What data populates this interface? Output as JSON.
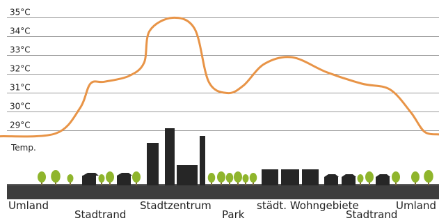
{
  "chart_data": {
    "type": "line",
    "title": "",
    "xlabel": "",
    "ylabel": "Temp.",
    "y_unit": "°C",
    "ylim": [
      28.7,
      35
    ],
    "y_ticks": [
      "35°C",
      "34°C",
      "33°C",
      "32°C",
      "31°C",
      "30°C",
      "29°C"
    ],
    "grid": true,
    "zones": [
      {
        "label": "Umland",
        "row": "upper"
      },
      {
        "label": "Stadtrand",
        "row": "lower"
      },
      {
        "label": "Stadtzentrum",
        "row": "upper"
      },
      {
        "label": "Park",
        "row": "lower"
      },
      {
        "label": "städt. Wohngebiete",
        "row": "upper"
      },
      {
        "label": "Stadtrand",
        "row": "lower"
      },
      {
        "label": "Umland",
        "row": "upper"
      }
    ],
    "series": [
      {
        "color": "#e89447",
        "profile": [
          {
            "zone": "Umland",
            "value": 28.7
          },
          {
            "zone": "Stadtrand",
            "value": 31.6
          },
          {
            "zone": "Stadtzentrum",
            "value": 35.0
          },
          {
            "zone": "Park",
            "value": 31.0
          },
          {
            "zone": "städt. Wohngebiete",
            "value": 32.9
          },
          {
            "zone": "Stadtrand",
            "value": 31.5
          },
          {
            "zone": "Umland",
            "value": 28.8
          }
        ]
      }
    ]
  },
  "colors": {
    "curve": "#e89447",
    "grid": "#9a9a9a",
    "ground": "#3d3d3d",
    "building": "#262626",
    "tree": "#8fb52c",
    "trunk": "#7a6a3a",
    "text": "#222222"
  }
}
